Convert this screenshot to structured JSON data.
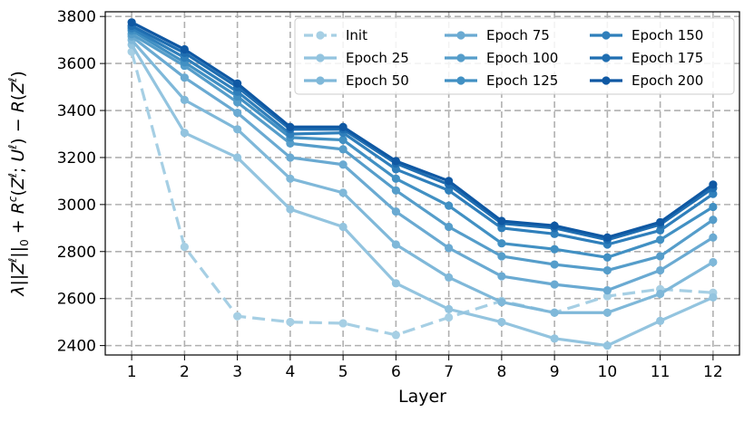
{
  "chart_data": {
    "type": "line",
    "title": "",
    "xlabel": "Layer",
    "ylabel": "λ||Z^ℓ||_0 + R^c(Z^ℓ; U^ℓ) − R(Z^ℓ)",
    "ylabel_parts": {
      "lambda": "λ",
      "bar1": "||",
      "Z1": "Z",
      "sup1": "ℓ",
      "bar2": "||",
      "sub0": "0",
      "plus": " + ",
      "R1": "R",
      "supc": "c",
      "open1": "(",
      "Z2": "Z",
      "sup2": "ℓ",
      "semi": "; ",
      "U": "U",
      "sup3": "ℓ",
      "close1": ")",
      "minus": " − ",
      "R2": "R",
      "open2": "(",
      "Z3": "Z",
      "sup4": "ℓ",
      "close2": ")"
    },
    "x": [
      1,
      2,
      3,
      4,
      5,
      6,
      7,
      8,
      9,
      10,
      11,
      12
    ],
    "xlim": [
      0.5,
      12.5
    ],
    "ylim": [
      2360,
      3820
    ],
    "yticks": [
      2400,
      2600,
      2800,
      3000,
      3200,
      3400,
      3600,
      3800
    ],
    "grid": true,
    "legend": {
      "placement": "top-right",
      "columns": 3
    },
    "series": [
      {
        "name": "Init",
        "color": "#a6cfe4",
        "dashed": true,
        "values": [
          3650,
          2820,
          2525,
          2500,
          2495,
          2445,
          2520,
          2590,
          2540,
          2610,
          2640,
          2625
        ]
      },
      {
        "name": "Epoch 25",
        "color": "#93c4df",
        "dashed": false,
        "values": [
          3680,
          3305,
          3200,
          2980,
          2905,
          2665,
          2555,
          2500,
          2430,
          2400,
          2505,
          2605
        ]
      },
      {
        "name": "Epoch 50",
        "color": "#7fb8d9",
        "dashed": false,
        "values": [
          3700,
          3445,
          3320,
          3110,
          3050,
          2830,
          2690,
          2585,
          2540,
          2540,
          2620,
          2755
        ]
      },
      {
        "name": "Epoch 75",
        "color": "#6aaad2",
        "dashed": false,
        "values": [
          3715,
          3540,
          3390,
          3200,
          3170,
          2970,
          2815,
          2695,
          2660,
          2635,
          2720,
          2860
        ]
      },
      {
        "name": "Epoch 100",
        "color": "#559dca",
        "dashed": false,
        "values": [
          3725,
          3590,
          3435,
          3260,
          3235,
          3060,
          2905,
          2780,
          2745,
          2720,
          2780,
          2935
        ]
      },
      {
        "name": "Epoch 125",
        "color": "#4190c3",
        "dashed": false,
        "values": [
          3740,
          3605,
          3460,
          3285,
          3275,
          3110,
          2995,
          2835,
          2810,
          2775,
          2850,
          2990
        ]
      },
      {
        "name": "Epoch 150",
        "color": "#2f7fbb",
        "dashed": false,
        "values": [
          3750,
          3625,
          3480,
          3300,
          3305,
          3150,
          3060,
          2900,
          2875,
          2830,
          2890,
          3045
        ]
      },
      {
        "name": "Epoch 175",
        "color": "#1f6eb1",
        "dashed": false,
        "values": [
          3760,
          3645,
          3500,
          3320,
          3320,
          3175,
          3085,
          2920,
          2900,
          2850,
          2915,
          3070
        ]
      },
      {
        "name": "Epoch 200",
        "color": "#0f58a3",
        "dashed": false,
        "values": [
          3775,
          3660,
          3515,
          3330,
          3330,
          3185,
          3100,
          2930,
          2910,
          2860,
          2925,
          3085
        ]
      }
    ]
  }
}
